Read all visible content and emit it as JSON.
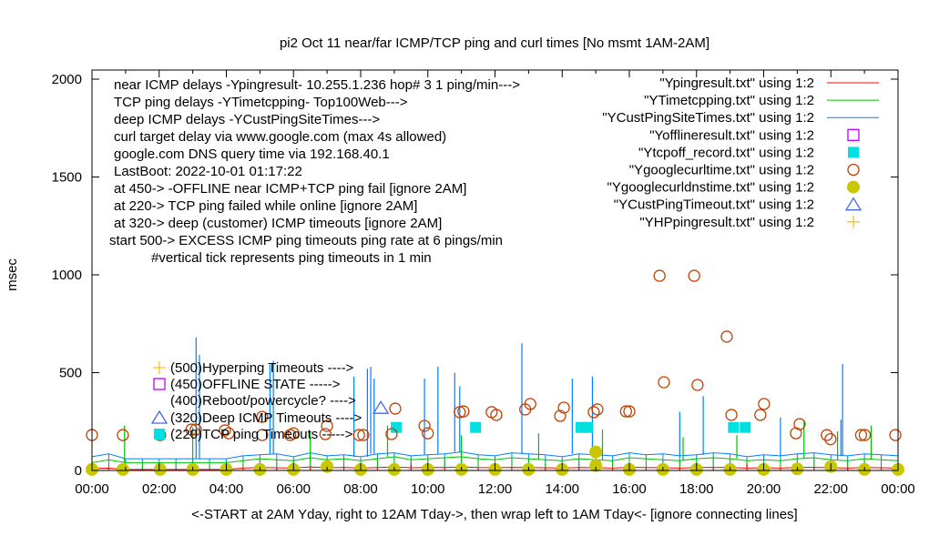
{
  "chart_data": {
    "type": "line",
    "title": "pi2  Oct 11   near/far ICMP/TCP ping and curl times [No msmt 1AM-2AM]",
    "xlabel": "<-START at 2AM Yday, right to 12AM Tday->, then wrap left to 1AM Tday<- [ignore connecting lines]",
    "ylabel": "msec",
    "xlim": [
      0,
      24
    ],
    "ylim": [
      0,
      2000
    ],
    "x_ticks": [
      "00:00",
      "02:00",
      "04:00",
      "06:00",
      "08:00",
      "10:00",
      "12:00",
      "14:00",
      "16:00",
      "18:00",
      "20:00",
      "22:00",
      "00:00"
    ],
    "y_ticks": [
      "0",
      "500",
      "1000",
      "1500",
      "2000"
    ],
    "y_tick_values": [
      0,
      500,
      1000,
      1500,
      2000
    ],
    "notes": [
      "near ICMP delays -Ypingresult- 10.255.1.236 hop# 3 1 ping/min--->",
      "TCP ping delays -YTimetcpping- Top100Web--->",
      "deep ICMP delays -YCustPingSiteTimes--->",
      "curl target delay via www.google.com (max 4s allowed)",
      "google.com DNS query time via 192.168.40.1",
      "LastBoot: 2022-10-01 01:17:22",
      "at 450-> -OFFLINE near ICMP+TCP ping fail [ignore 2AM]",
      "at 220-> TCP ping failed while online [ignore 2AM]",
      "at 320-> deep (customer) ICMP timeouts [ignore 2AM]",
      "start 500-> EXCESS ICMP ping timeouts ping rate at 6 pings/min",
      "#vertical tick represents ping timeouts in 1 min"
    ],
    "marker_labels": [
      "(500)Hyperping Timeouts ---->",
      "(450)OFFLINE STATE ----->",
      "(400)Reboot/powercycle? ---->",
      "(320)Deep ICMP Timeouts ---->",
      "(220)TCP ping Timeouts ----->"
    ],
    "legend_position": "top-right",
    "legend": [
      {
        "label": "\"Ypingresult.txt\" using 1:2",
        "style": "line",
        "color": "#ff0000"
      },
      {
        "label": "\"YTimetcpping.txt\" using 1:2",
        "style": "line",
        "color": "#00c000"
      },
      {
        "label": "\"YCustPingSiteTimes.txt\" using 1:2",
        "style": "line",
        "color": "#0080ff"
      },
      {
        "label": "\"Yofflineresult.txt\" using 1:2",
        "style": "open-square",
        "color": "#c000ff"
      },
      {
        "label": "\"Ytcpoff_record.txt\" using 1:2",
        "style": "filled-square",
        "color": "#00e0e0"
      },
      {
        "label": "\"Ygooglecurltime.txt\" using 1:2",
        "style": "open-circle",
        "color": "#c04000"
      },
      {
        "label": "\"Ygooglecurldnstime.txt\" using 1:2",
        "style": "filled-circle",
        "color": "#c8c800"
      },
      {
        "label": "\"YCustPingTimeout.txt\" using 1:2",
        "style": "open-triangle",
        "color": "#4169e1"
      },
      {
        "label": "\"YHPpingresult.txt\" using 1:2",
        "style": "plus",
        "color": "#ffc020"
      }
    ],
    "series": [
      {
        "name": "Ypingresult",
        "step_hours": 0.5,
        "color": "#ff0000",
        "values": [
          10,
          12,
          5,
          5,
          5,
          5,
          5,
          5,
          5,
          12,
          15,
          14,
          12,
          18,
          14,
          16,
          12,
          15,
          18,
          14,
          16,
          15,
          18,
          15,
          14,
          16,
          15,
          14,
          12,
          15,
          14,
          12,
          16,
          15,
          14,
          12,
          15,
          16,
          15,
          12,
          14,
          12,
          15,
          16,
          14,
          12,
          15,
          14,
          12
        ],
        "spikes": [
          [
            7.0,
            40
          ],
          [
            15.0,
            60
          ],
          [
            9.5,
            35
          ],
          [
            19.5,
            35
          ]
        ]
      },
      {
        "name": "YTimetcpping",
        "step_hours": 0.5,
        "color": "#00c000",
        "values": [
          40,
          55,
          40,
          40,
          40,
          40,
          40,
          40,
          40,
          50,
          60,
          55,
          50,
          65,
          55,
          60,
          50,
          60,
          70,
          55,
          60,
          65,
          70,
          60,
          55,
          65,
          60,
          55,
          50,
          60,
          55,
          50,
          65,
          60,
          55,
          50,
          60,
          65,
          60,
          50,
          55,
          50,
          60,
          65,
          55,
          50,
          60,
          55,
          50
        ],
        "spikes": [
          [
            0.97,
            230
          ],
          [
            3.0,
            220
          ],
          [
            6.5,
            200
          ],
          [
            8.8,
            230
          ],
          [
            11.0,
            180
          ],
          [
            13.3,
            190
          ],
          [
            15.2,
            210
          ],
          [
            17.6,
            170
          ],
          [
            19.2,
            180
          ],
          [
            21.2,
            250
          ],
          [
            22.2,
            200
          ],
          [
            23.2,
            230
          ]
        ]
      },
      {
        "name": "YCustPingSiteTimes",
        "step_hours": 0.5,
        "color": "#0080ff",
        "values": [
          70,
          85,
          60,
          60,
          60,
          60,
          60,
          60,
          60,
          75,
          80,
          85,
          70,
          90,
          75,
          80,
          70,
          85,
          90,
          75,
          80,
          85,
          95,
          80,
          75,
          90,
          85,
          80,
          70,
          85,
          80,
          75,
          90,
          80,
          85,
          75,
          80,
          90,
          85,
          70,
          80,
          75,
          85,
          90,
          80,
          75,
          85,
          80,
          75
        ],
        "spikes": [
          [
            3.1,
            680
          ],
          [
            3.2,
            590
          ],
          [
            5.3,
            540
          ],
          [
            5.4,
            560
          ],
          [
            7.8,
            480
          ],
          [
            8.2,
            520
          ],
          [
            8.3,
            530
          ],
          [
            8.4,
            470
          ],
          [
            9.9,
            470
          ],
          [
            10.3,
            530
          ],
          [
            10.8,
            500
          ],
          [
            10.95,
            430
          ],
          [
            12.8,
            650
          ],
          [
            14.3,
            470
          ],
          [
            14.9,
            480
          ],
          [
            17.5,
            300
          ],
          [
            18.2,
            380
          ],
          [
            20.5,
            270
          ],
          [
            22.3,
            260
          ],
          [
            22.35,
            545
          ]
        ]
      }
    ],
    "points": {
      "Ytcpoff_record": [
        [
          9.06,
          220
        ],
        [
          11.42,
          220
        ],
        [
          14.56,
          220
        ],
        [
          14.75,
          220
        ],
        [
          19.1,
          220
        ],
        [
          19.45,
          220
        ]
      ],
      "Ygooglecurltime": [
        [
          0,
          181
        ],
        [
          0.92,
          181
        ],
        [
          2.03,
          181
        ],
        [
          2.96,
          209
        ],
        [
          3.09,
          209
        ],
        [
          3.96,
          205
        ],
        [
          4.07,
          190
        ],
        [
          5.07,
          181
        ],
        [
          5.07,
          274
        ],
        [
          5.9,
          181
        ],
        [
          6.0,
          190
        ],
        [
          7.0,
          228
        ],
        [
          6.95,
          186
        ],
        [
          7.95,
          181
        ],
        [
          8.08,
          181
        ],
        [
          8.92,
          186
        ],
        [
          9.03,
          316
        ],
        [
          9.9,
          228
        ],
        [
          10.0,
          190
        ],
        [
          10.95,
          298
        ],
        [
          11.06,
          302
        ],
        [
          11.9,
          298
        ],
        [
          12.04,
          284
        ],
        [
          12.9,
          312
        ],
        [
          13.05,
          340
        ],
        [
          13.94,
          279
        ],
        [
          14.05,
          321
        ],
        [
          14.94,
          298
        ],
        [
          15.05,
          312
        ],
        [
          15.9,
          302
        ],
        [
          16.0,
          302
        ],
        [
          16.9,
          995
        ],
        [
          17.03,
          451
        ],
        [
          17.93,
          995
        ],
        [
          18.03,
          437
        ],
        [
          18.9,
          684
        ],
        [
          19.04,
          284
        ],
        [
          19.9,
          284
        ],
        [
          20.01,
          340
        ],
        [
          20.96,
          190
        ],
        [
          21.07,
          237
        ],
        [
          21.88,
          181
        ],
        [
          21.99,
          160
        ],
        [
          22.9,
          181
        ],
        [
          23.01,
          181
        ],
        [
          23.92,
          181
        ]
      ],
      "Ygooglecurldnstime": [
        [
          0,
          5
        ],
        [
          0.92,
          5
        ],
        [
          2.03,
          5
        ],
        [
          3,
          5
        ],
        [
          4,
          5
        ],
        [
          5,
          5
        ],
        [
          6,
          5
        ],
        [
          7,
          20
        ],
        [
          8,
          5
        ],
        [
          9,
          5
        ],
        [
          10,
          5
        ],
        [
          11,
          5
        ],
        [
          12,
          5
        ],
        [
          13,
          5
        ],
        [
          14,
          5
        ],
        [
          15,
          95
        ],
        [
          15,
          25
        ],
        [
          16,
          5
        ],
        [
          17,
          5
        ],
        [
          18,
          5
        ],
        [
          19,
          5
        ],
        [
          20,
          5
        ],
        [
          21,
          8
        ],
        [
          22,
          20
        ],
        [
          23,
          5
        ],
        [
          24,
          5
        ]
      ],
      "YCustPingTimeout": [
        [
          8.6,
          320
        ]
      ]
    }
  }
}
